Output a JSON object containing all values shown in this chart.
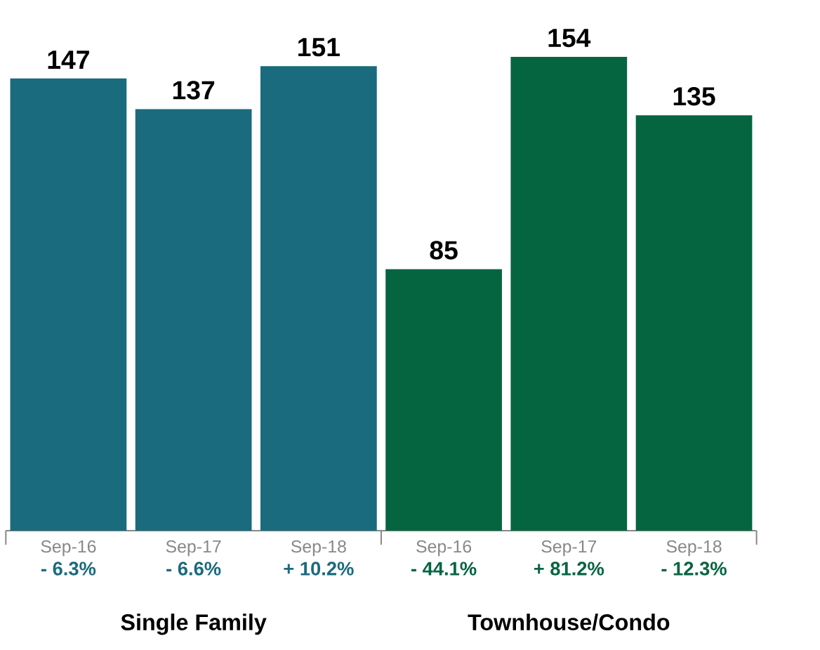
{
  "chart_data": {
    "type": "bar",
    "categories": [
      "Sep-16",
      "Sep-17",
      "Sep-18",
      "Sep-16",
      "Sep-17",
      "Sep-18"
    ],
    "values": [
      147,
      137,
      151,
      85,
      154,
      135
    ],
    "colors": [
      "#1a6b7d",
      "#1a6b7d",
      "#1a6b7d",
      "#066541",
      "#066541",
      "#066541"
    ],
    "annotations": [
      "- 6.3%",
      "- 6.6%",
      "+ 10.2%",
      "- 44.1%",
      "+ 81.2%",
      "- 12.3%",
      "Single Family",
      "Townhouse/Condo"
    ],
    "data_labels": true
  }
}
